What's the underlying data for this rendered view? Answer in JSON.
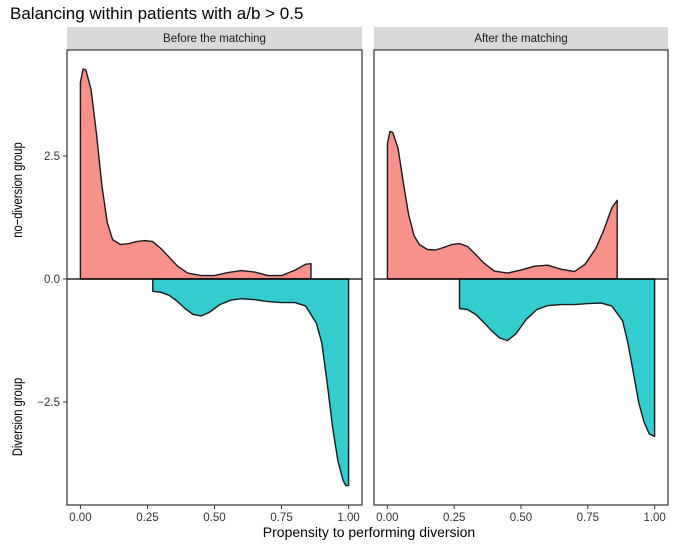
{
  "chart_data": {
    "type": "area",
    "title": "Balancing within patients with a/b > 0.5",
    "xlabel": "Propensity to performing diversion",
    "ylabel_top": "no−diversion  group",
    "ylabel_bottom": "Diversion group",
    "x_ticks": [
      "0.00",
      "0.25",
      "0.50",
      "0.75",
      "1.00"
    ],
    "x_tick_values": [
      0,
      0.25,
      0.5,
      0.75,
      1.0
    ],
    "y_ticks": [
      "2.5",
      "0.0",
      "−2.5"
    ],
    "y_tick_values": [
      2.5,
      0,
      -2.5
    ],
    "xlim": [
      -0.05,
      1.05
    ],
    "ylim": [
      -4.6,
      4.8
    ],
    "grid": false,
    "colors": {
      "top": "#f8918a",
      "bottom": "#33cccf"
    },
    "panels": [
      {
        "strip": "Before the matching",
        "series": [
          {
            "group": "top",
            "x": [
              0.0,
              0.01,
              0.02,
              0.04,
              0.06,
              0.08,
              0.1,
              0.12,
              0.15,
              0.18,
              0.21,
              0.24,
              0.27,
              0.3,
              0.33,
              0.36,
              0.4,
              0.45,
              0.5,
              0.55,
              0.6,
              0.65,
              0.7,
              0.75,
              0.8,
              0.84,
              0.86
            ],
            "y": [
              4.0,
              4.27,
              4.25,
              3.85,
              2.95,
              1.9,
              1.15,
              0.8,
              0.7,
              0.72,
              0.76,
              0.78,
              0.76,
              0.62,
              0.45,
              0.27,
              0.12,
              0.07,
              0.07,
              0.13,
              0.17,
              0.14,
              0.07,
              0.07,
              0.18,
              0.3,
              0.31
            ]
          },
          {
            "group": "bottom",
            "x": [
              0.27,
              0.3,
              0.33,
              0.36,
              0.39,
              0.42,
              0.45,
              0.48,
              0.52,
              0.56,
              0.6,
              0.65,
              0.7,
              0.75,
              0.8,
              0.84,
              0.88,
              0.9,
              0.92,
              0.94,
              0.96,
              0.98,
              0.99,
              1.0
            ],
            "y": [
              -0.25,
              -0.27,
              -0.33,
              -0.45,
              -0.6,
              -0.72,
              -0.75,
              -0.68,
              -0.52,
              -0.43,
              -0.4,
              -0.42,
              -0.46,
              -0.48,
              -0.48,
              -0.55,
              -0.9,
              -1.3,
              -2.1,
              -3.0,
              -3.7,
              -4.1,
              -4.2,
              -4.2
            ]
          }
        ]
      },
      {
        "strip": "After the matching",
        "series": [
          {
            "group": "top",
            "x": [
              0.0,
              0.01,
              0.02,
              0.04,
              0.06,
              0.08,
              0.1,
              0.12,
              0.15,
              0.18,
              0.21,
              0.24,
              0.27,
              0.3,
              0.33,
              0.36,
              0.4,
              0.45,
              0.5,
              0.55,
              0.6,
              0.65,
              0.7,
              0.74,
              0.78,
              0.81,
              0.84,
              0.86
            ],
            "y": [
              2.75,
              3.0,
              2.98,
              2.65,
              1.95,
              1.3,
              0.88,
              0.7,
              0.6,
              0.59,
              0.64,
              0.7,
              0.72,
              0.66,
              0.5,
              0.33,
              0.16,
              0.12,
              0.18,
              0.26,
              0.28,
              0.2,
              0.15,
              0.3,
              0.62,
              1.0,
              1.45,
              1.6
            ]
          },
          {
            "group": "bottom",
            "x": [
              0.27,
              0.3,
              0.33,
              0.36,
              0.39,
              0.42,
              0.45,
              0.48,
              0.52,
              0.56,
              0.6,
              0.65,
              0.7,
              0.75,
              0.8,
              0.84,
              0.88,
              0.9,
              0.92,
              0.94,
              0.96,
              0.98,
              1.0
            ],
            "y": [
              -0.6,
              -0.62,
              -0.72,
              -0.88,
              -1.05,
              -1.2,
              -1.25,
              -1.12,
              -0.82,
              -0.62,
              -0.54,
              -0.52,
              -0.52,
              -0.5,
              -0.49,
              -0.55,
              -0.85,
              -1.3,
              -1.9,
              -2.5,
              -2.9,
              -3.15,
              -3.2
            ]
          }
        ]
      }
    ]
  }
}
